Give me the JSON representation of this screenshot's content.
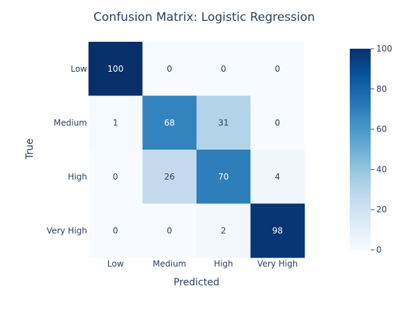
{
  "chart_data": {
    "type": "heatmap",
    "title": "Confusion Matrix: Logistic Regression",
    "xlabel": "Predicted",
    "ylabel": "True",
    "x_categories": [
      "Low",
      "Medium",
      "High",
      "Very High"
    ],
    "y_categories": [
      "Low",
      "Medium",
      "High",
      "Very High"
    ],
    "z": [
      [
        100,
        0,
        0,
        0
      ],
      [
        1,
        68,
        31,
        0
      ],
      [
        0,
        26,
        70,
        4
      ],
      [
        0,
        0,
        2,
        98
      ]
    ],
    "colorscale": "Blues",
    "zmin": 0,
    "zmax": 100,
    "colorbar_ticks": [
      0,
      20,
      40,
      60,
      80,
      100
    ],
    "grid": false
  }
}
